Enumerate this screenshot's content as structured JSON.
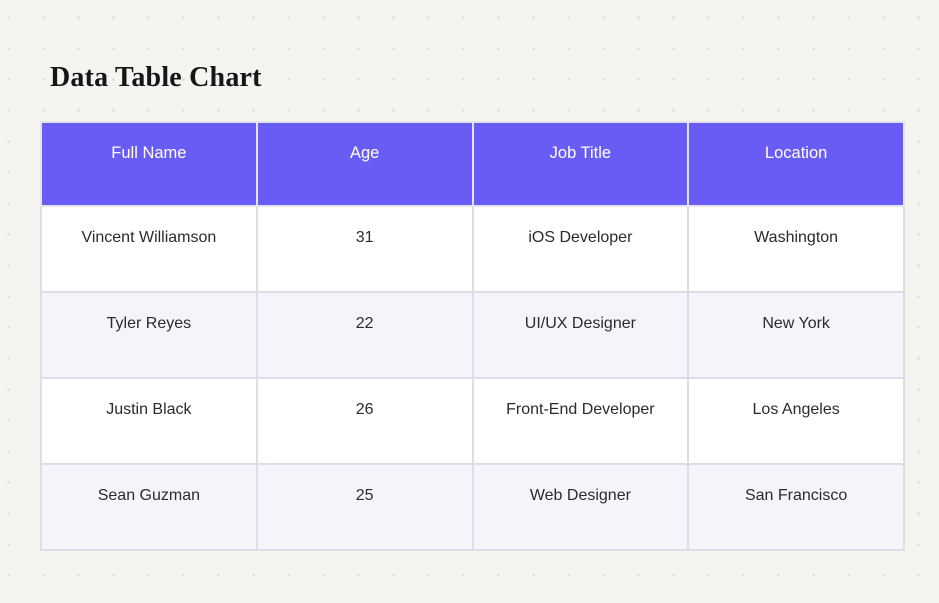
{
  "page": {
    "title": "Data Table Chart"
  },
  "chart_data": {
    "type": "table",
    "title": "Data Table Chart",
    "columns": [
      "Full Name",
      "Age",
      "Job Title",
      "Location"
    ],
    "rows": [
      [
        "Vincent Williamson",
        "31",
        "iOS Developer",
        "Washington"
      ],
      [
        "Tyler Reyes",
        "22",
        "UI/UX Designer",
        "New York"
      ],
      [
        "Justin Black",
        "26",
        "Front-End Developer",
        "Los Angeles"
      ],
      [
        "Sean Guzman",
        "25",
        "Web Designer",
        "San Francisco"
      ]
    ],
    "layout_hints": {
      "header_position": "top",
      "row_striping": "alternating",
      "cell_alignment": "center"
    }
  },
  "colors": {
    "canvas_bg": "#f5f4f1",
    "dot": "#d9d6d2",
    "header_bg": "#695cf5",
    "header_text": "#ffffff",
    "row_even_bg": "#ffffff",
    "row_odd_bg": "#f5f4fb",
    "border": "#dedde6",
    "cell_text": "#2b2b2b",
    "title_text": "#161616"
  }
}
